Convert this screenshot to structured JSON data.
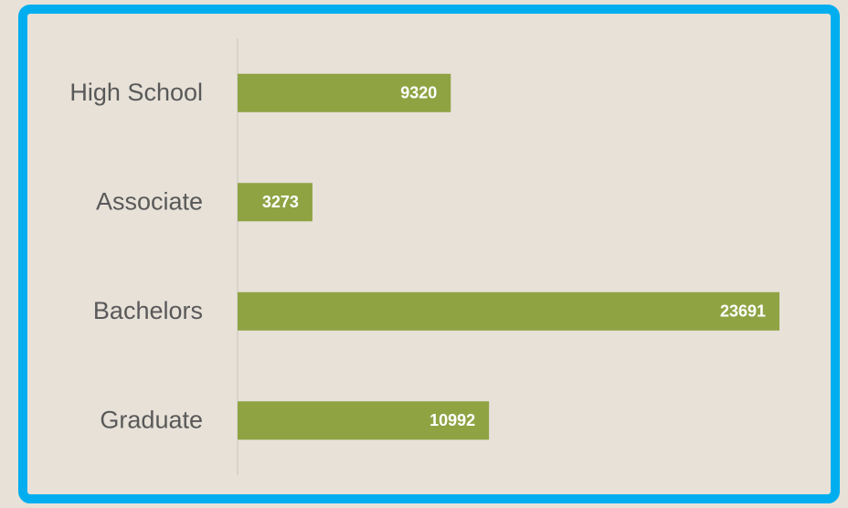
{
  "chart_data": {
    "type": "bar",
    "orientation": "horizontal",
    "categories": [
      "High School",
      "Associate",
      "Bachelors",
      "Graduate"
    ],
    "values": [
      9320,
      3273,
      23691,
      10992
    ],
    "color": "#8fa343"
  }
}
